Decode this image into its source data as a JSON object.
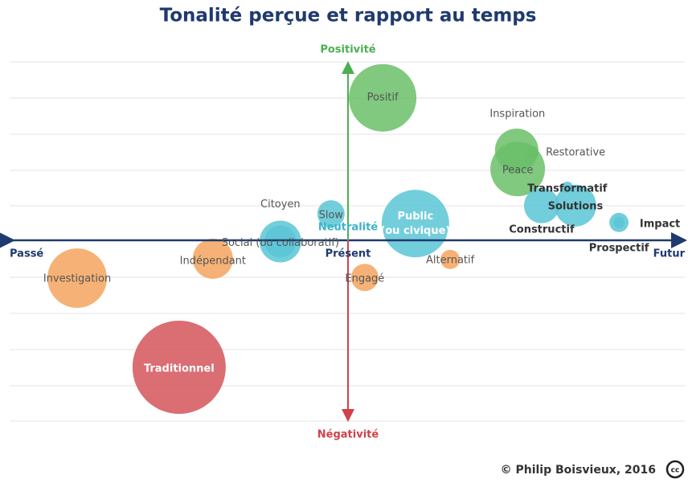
{
  "chart_data": {
    "type": "bubble",
    "title": "Tonalité perçue et rapport au temps",
    "axis_labels": {
      "top": "Positivité",
      "bottom": "Négativité",
      "left": "Passé",
      "right": "Futur",
      "center_x": "Présent",
      "center_y": "Neutralité"
    },
    "xlim": [
      -10,
      10
    ],
    "ylim": [
      -5,
      5
    ],
    "points": [
      {
        "label": "Positif",
        "x": 1.05,
        "y": 4.0,
        "size": 42,
        "color": "#6abf69"
      },
      {
        "label": "Inspiration",
        "x": 5.02,
        "y": 2.54,
        "size": 27,
        "color": "#6abf69"
      },
      {
        "label": "Restorative",
        "x": 5.48,
        "y": 2.47,
        "size": 8,
        "color": "#6abf69"
      },
      {
        "label": "Peace",
        "x": 5.05,
        "y": 2.02,
        "size": 34,
        "color": "#6abf69"
      },
      {
        "label": "Transformatif",
        "x": 6.52,
        "y": 1.51,
        "size": 7,
        "color": "#5bc5d6"
      },
      {
        "label": "Constructif",
        "x": 5.76,
        "y": 1.0,
        "size": 22,
        "color": "#5bc5d6"
      },
      {
        "label": "Solutions",
        "x": 6.76,
        "y": 1.0,
        "size": 26,
        "color": "#5bc5d6"
      },
      {
        "label": "Impact",
        "x": 8.05,
        "y": 0.53,
        "size": 12,
        "color": "#5bc5d6"
      },
      {
        "label": "Prospectif",
        "x": 8.05,
        "y": 0.53,
        "size": 7,
        "color": "#5bc5d6"
      },
      {
        "label": "Slow",
        "x": -0.48,
        "y": 0.77,
        "size": 17,
        "color": "#5bc5d6"
      },
      {
        "label": "Citoyen",
        "x": -1.98,
        "y": 0.0,
        "size": 26,
        "color": "#5bc5d6"
      },
      {
        "label": "Social (ou collaboratif)",
        "x": -1.98,
        "y": 0.0,
        "size": 20,
        "color": "#5bc5d6"
      },
      {
        "label": "Public (ou civique)",
        "x": 2.02,
        "y": 0.5,
        "size": 42,
        "color": "#5bc5d6"
      },
      {
        "label": "Indépendant",
        "x": -3.98,
        "y": -0.48,
        "size": 25,
        "color": "#f4a55e"
      },
      {
        "label": "Investigation",
        "x": -8.0,
        "y": -1.02,
        "size": 37,
        "color": "#f4a55e"
      },
      {
        "label": "Engagé",
        "x": 0.52,
        "y": -1.0,
        "size": 17,
        "color": "#f4a55e"
      },
      {
        "label": "Alternatif",
        "x": 3.05,
        "y": -0.5,
        "size": 12,
        "color": "#f4a55e"
      },
      {
        "label": "Traditionnel",
        "x": -4.98,
        "y": -3.5,
        "size": 58,
        "color": "#d4555b"
      }
    ],
    "credit": "© Philip Boisvieux, 2016"
  }
}
